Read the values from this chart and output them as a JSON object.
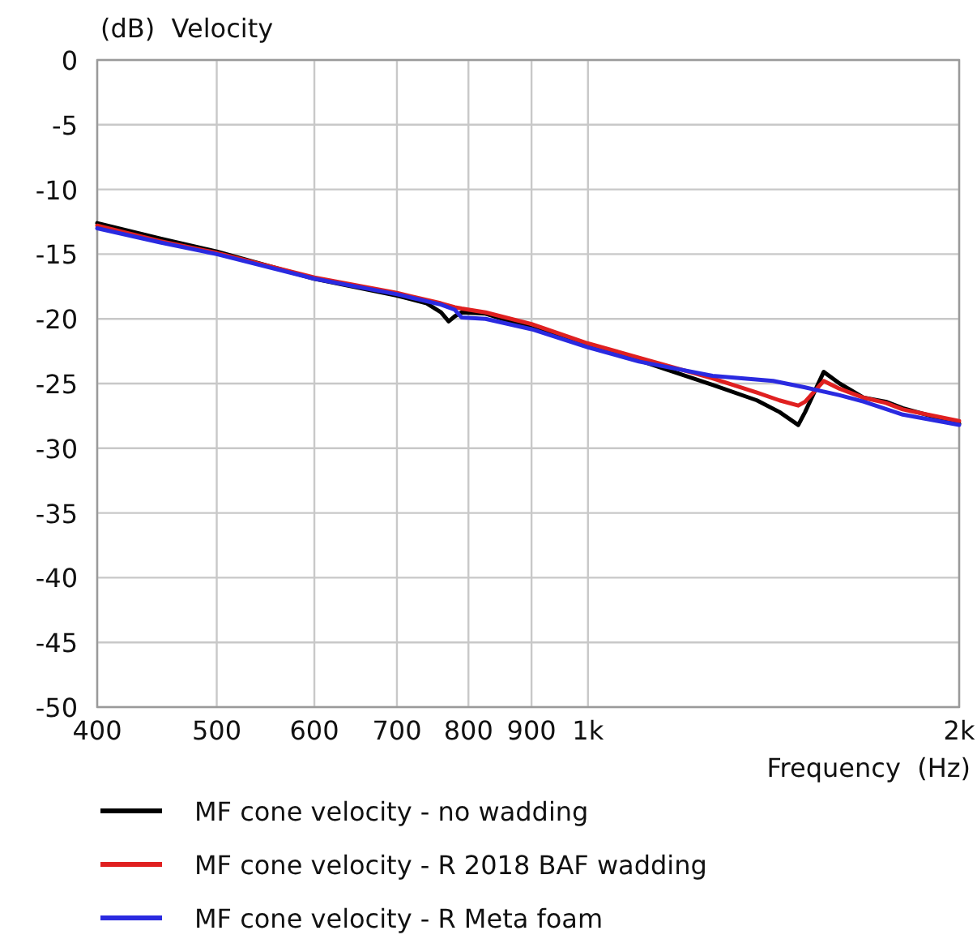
{
  "chart_data": {
    "type": "line",
    "xlabel": "Frequency  (Hz)",
    "ylabel": "(dB)  Velocity",
    "log": "x",
    "grid": true,
    "legend": "bottom",
    "line_style": "solid",
    "marker": "none",
    "xlim": [
      400,
      2000
    ],
    "xticks": [
      400,
      500,
      600,
      700,
      800,
      900,
      {
        "value": 1000,
        "label": "1k"
      },
      {
        "value": 2000,
        "label": "2k"
      }
    ],
    "ylim": [
      -50,
      0
    ],
    "yticks": [
      0,
      -5,
      -10,
      -15,
      -20,
      -25,
      -30,
      -35,
      -40,
      -45,
      -50
    ],
    "series": [
      {
        "name": "MF cone velocity - no wadding",
        "color": "#000000",
        "x": [
          400,
          450,
          500,
          600,
          700,
          740,
          760,
          771,
          780,
          790,
          826,
          900,
          1000,
          1100,
          1262,
          1371,
          1430,
          1481,
          1500,
          1553,
          1600,
          1674,
          1744,
          1800,
          2000
        ],
        "values": [
          -12.6,
          -13.8,
          -14.8,
          -16.9,
          -18.2,
          -18.8,
          -19.5,
          -20.2,
          -19.8,
          -19.5,
          -19.6,
          -20.7,
          -22.1,
          -23.2,
          -25.1,
          -26.3,
          -27.2,
          -28.2,
          -27.2,
          -24.1,
          -25.0,
          -26.1,
          -26.4,
          -26.9,
          -28.1
        ]
      },
      {
        "name": "MF cone velocity - R 2018 BAF wadding",
        "color": "#e02020",
        "x": [
          400,
          450,
          500,
          600,
          700,
          760,
          780,
          790,
          826,
          900,
          1000,
          1100,
          1262,
          1371,
          1430,
          1481,
          1500,
          1553,
          1600,
          1674,
          1744,
          1800,
          2000
        ],
        "values": [
          -12.8,
          -14.0,
          -14.9,
          -16.8,
          -18.0,
          -18.8,
          -19.1,
          -19.2,
          -19.5,
          -20.4,
          -21.9,
          -23.0,
          -24.6,
          -25.7,
          -26.3,
          -26.7,
          -26.4,
          -24.8,
          -25.4,
          -26.1,
          -26.5,
          -27.0,
          -27.9
        ]
      },
      {
        "name": "MF cone velocity - R Meta foam",
        "color": "#2a2ae0",
        "x": [
          400,
          450,
          500,
          600,
          700,
          760,
          780,
          790,
          826,
          900,
          1000,
          1100,
          1262,
          1413,
          1500,
          1600,
          1674,
          1800,
          2000
        ],
        "values": [
          -13.0,
          -14.1,
          -15.0,
          -16.9,
          -18.1,
          -18.9,
          -19.3,
          -19.9,
          -20.0,
          -20.8,
          -22.2,
          -23.3,
          -24.4,
          -24.8,
          -25.3,
          -25.9,
          -26.4,
          -27.4,
          -28.2
        ]
      }
    ]
  }
}
